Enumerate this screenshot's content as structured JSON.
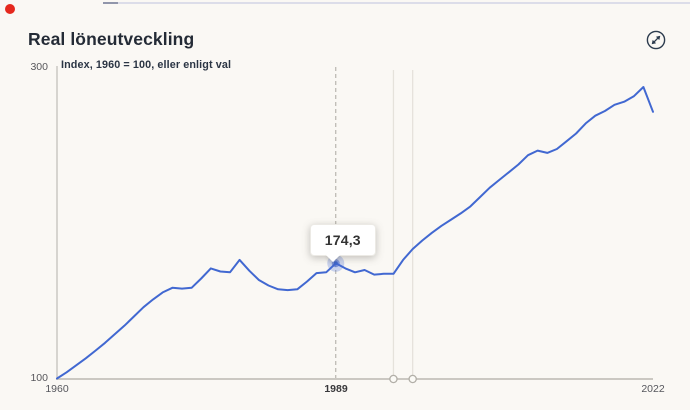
{
  "icons": {
    "expand": "expand-diagonal-arrows-icon",
    "indicator": "red-dot-icon"
  },
  "colors": {
    "background": "#faf8f4",
    "line": "#4168d1",
    "red_dot": "#e5281d",
    "halo": "rgba(77,110,216,0.28)",
    "halo_inner": "rgba(70,104,210,0.55)",
    "axis": "#cbc8c2",
    "cursor_line": "#aca8a1",
    "guide_line": "#e5e2db"
  },
  "chart_data": {
    "type": "line",
    "title": "Real löneutveckling",
    "subtitle": "Index, 1960 = 100, eller enligt val",
    "xlim": [
      1960,
      2022
    ],
    "ylim": [
      100,
      300
    ],
    "grid": "off",
    "legend": "none",
    "x": [
      1960,
      1961,
      1962,
      1963,
      1964,
      1965,
      1966,
      1967,
      1968,
      1969,
      1970,
      1971,
      1972,
      1973,
      1974,
      1975,
      1976,
      1977,
      1978,
      1979,
      1980,
      1981,
      1982,
      1983,
      1984,
      1985,
      1986,
      1987,
      1988,
      1989,
      1990,
      1991,
      1992,
      1993,
      1994,
      1995,
      1996,
      1997,
      1998,
      1999,
      2000,
      2001,
      2002,
      2003,
      2004,
      2005,
      2006,
      2007,
      2008,
      2009,
      2010,
      2011,
      2012,
      2013,
      2014,
      2015,
      2016,
      2017,
      2018,
      2019,
      2020,
      2021,
      2022
    ],
    "values": [
      100,
      104,
      108.5,
      113,
      118,
      123,
      128.5,
      134,
      140,
      146,
      151,
      155.5,
      158.5,
      158,
      158.5,
      164.5,
      171,
      169,
      168.5,
      176.5,
      169.5,
      163.5,
      160,
      157.5,
      157,
      157.5,
      162.5,
      168,
      168.5,
      174.3,
      171,
      168.5,
      170,
      167,
      167.5,
      167.5,
      176.5,
      183.5,
      189,
      194,
      198.5,
      202.5,
      206.5,
      211,
      217,
      223,
      228,
      233,
      238,
      244,
      247,
      245.5,
      248,
      253,
      258,
      264.5,
      269.5,
      272.5,
      276.5,
      278.5,
      282,
      288,
      272
    ],
    "y_tick_labels": {
      "top": "300",
      "bottom": "100"
    },
    "x_tick_labels": {
      "left": "1960",
      "cursor": "1989",
      "right": "2022"
    },
    "tooltip": {
      "year": 1989,
      "value": 174.3,
      "label": "174,3"
    },
    "cursor_year": 1989,
    "range_guide_years": [
      1995,
      1997
    ]
  }
}
